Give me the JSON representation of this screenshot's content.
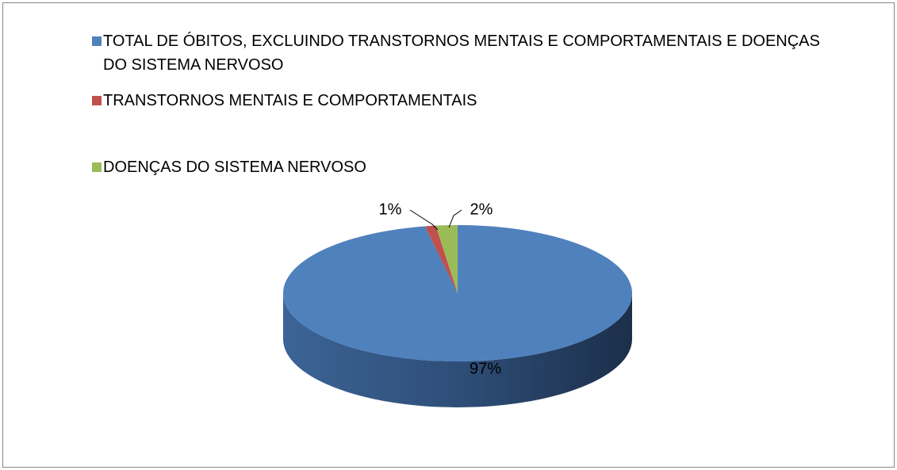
{
  "chart_data": {
    "type": "pie",
    "categories": [
      "TOTAL DE ÓBITOS, EXCLUINDO TRANSTORNOS MENTAIS E COMPORTAMENTAIS E DOENÇAS DO SISTEMA NERVOSO",
      "TRANSTORNOS MENTAIS E COMPORTAMENTAIS",
      "DOENÇAS DO SISTEMA NERVOSO"
    ],
    "values": [
      97,
      1,
      2
    ],
    "value_labels": [
      "97%",
      "1%",
      "2%"
    ],
    "colors": [
      "#4f81bd",
      "#c0504d",
      "#9bbb59"
    ],
    "legend": "top-left"
  }
}
